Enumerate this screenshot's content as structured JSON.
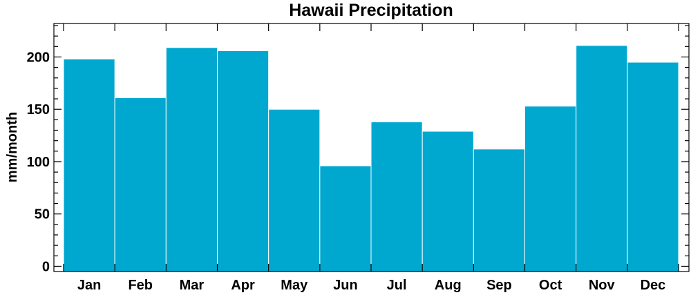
{
  "chart_data": {
    "type": "bar",
    "title": "Hawaii Precipitation",
    "xlabel": "",
    "ylabel": "mm/month",
    "categories": [
      "Jan",
      "Feb",
      "Mar",
      "Apr",
      "May",
      "Jun",
      "Jul",
      "Aug",
      "Sep",
      "Oct",
      "Nov",
      "Dec"
    ],
    "values": [
      198,
      161,
      209,
      206,
      150,
      96,
      138,
      129,
      112,
      153,
      211,
      195
    ],
    "ylim": [
      -5,
      232
    ],
    "yticks": [
      0,
      50,
      100,
      150,
      200
    ],
    "grid": false,
    "legend": "none",
    "bar_color": "#00A8D0"
  }
}
